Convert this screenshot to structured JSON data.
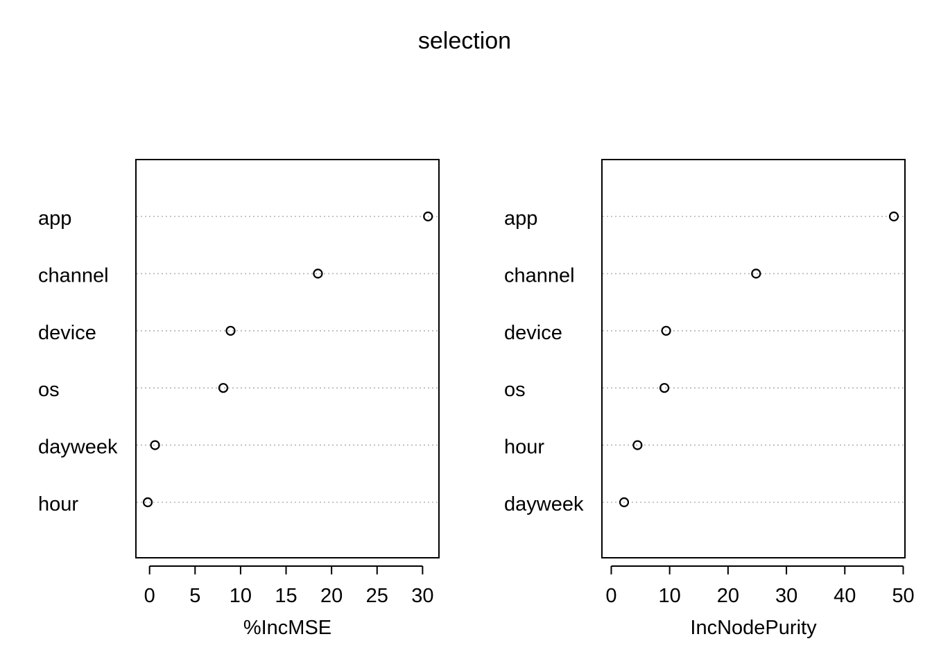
{
  "chart_data": {
    "title": "selection",
    "panels": [
      {
        "type": "scatter",
        "subtype": "dotchart",
        "xlabel": "%IncMSE",
        "xlim": [
          -1.5,
          31.8
        ],
        "xticks": [
          0,
          5,
          10,
          15,
          20,
          25,
          30
        ],
        "categories": [
          "app",
          "channel",
          "device",
          "os",
          "dayweek",
          "hour"
        ],
        "values": [
          30.6,
          18.5,
          8.9,
          8.1,
          0.6,
          -0.2
        ],
        "grid": true
      },
      {
        "type": "scatter",
        "subtype": "dotchart",
        "xlabel": "IncNodePurity",
        "xlim": [
          -1.6,
          50.3
        ],
        "xticks": [
          0,
          10,
          20,
          30,
          40,
          50
        ],
        "categories": [
          "app",
          "channel",
          "device",
          "os",
          "hour",
          "dayweek"
        ],
        "values": [
          48.4,
          24.8,
          9.4,
          9.1,
          4.5,
          2.2
        ],
        "grid": true
      }
    ]
  }
}
